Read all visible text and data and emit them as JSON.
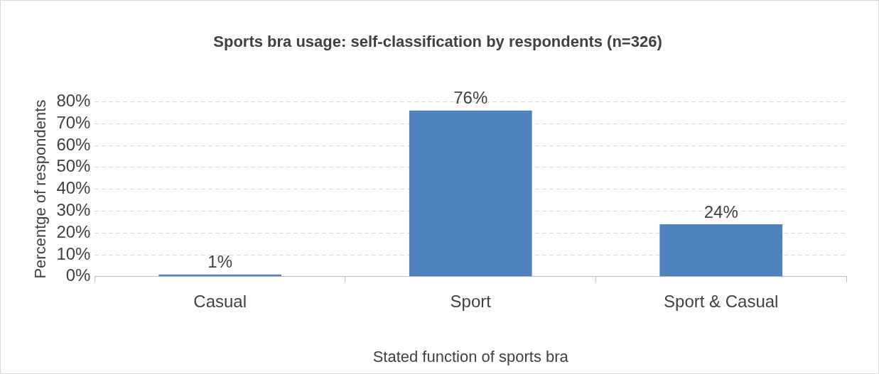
{
  "chart_data": {
    "type": "bar",
    "title": "Sports bra usage: self-classification by respondents (n=326)",
    "xlabel": "Stated function of sports bra",
    "ylabel": "Percentge of respondents",
    "categories": [
      "Casual",
      "Sport",
      "Sport & Casual"
    ],
    "values": [
      1,
      76,
      24
    ],
    "value_labels": [
      "1%",
      "76%",
      "24%"
    ],
    "color": "#4f81bd",
    "ylim": [
      0,
      80
    ],
    "yticks": [
      {
        "value": 0,
        "label": "0%"
      },
      {
        "value": 10,
        "label": "10%"
      },
      {
        "value": 20,
        "label": "20%"
      },
      {
        "value": 30,
        "label": "30%"
      },
      {
        "value": 40,
        "label": "40%"
      },
      {
        "value": 50,
        "label": "50%"
      },
      {
        "value": 60,
        "label": "60%"
      },
      {
        "value": 70,
        "label": "70%"
      },
      {
        "value": 80,
        "label": "80%"
      }
    ],
    "grid": "y",
    "legend": false
  }
}
